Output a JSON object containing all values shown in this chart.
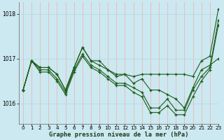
{
  "title": "Graphe pression niveau de la mer (hPa)",
  "bg_color": "#cce8f0",
  "grid_color_h": "#b8d8e8",
  "grid_color_v": "#e8b8b8",
  "line_color": "#1a5c1a",
  "xlim": [
    -0.5,
    23
  ],
  "ylim": [
    1015.55,
    1018.25
  ],
  "yticks": [
    1016,
    1017,
    1018
  ],
  "xticks": [
    0,
    1,
    2,
    3,
    4,
    5,
    6,
    7,
    8,
    9,
    10,
    11,
    12,
    13,
    14,
    15,
    16,
    17,
    18,
    19,
    20,
    21,
    22,
    23
  ],
  "series": [
    [
      1016.3,
      1016.95,
      1016.8,
      1016.8,
      1016.65,
      1016.3,
      1016.8,
      1017.25,
      1016.95,
      1016.95,
      1016.75,
      1016.65,
      1016.65,
      1016.6,
      1016.65,
      1016.65,
      1016.65,
      1016.65,
      1016.65,
      1016.65,
      1016.6,
      1016.95,
      1017.05,
      1018.1
    ],
    [
      1016.3,
      1016.95,
      1016.8,
      1016.8,
      1016.65,
      1016.3,
      1016.8,
      1017.25,
      1016.95,
      1016.85,
      1016.75,
      1016.6,
      1016.65,
      1016.45,
      1016.55,
      1016.3,
      1016.3,
      1016.2,
      1016.1,
      1015.9,
      1016.35,
      1016.75,
      1016.85,
      1017.0
    ],
    [
      1016.3,
      1016.95,
      1016.75,
      1016.75,
      1016.55,
      1016.25,
      1016.75,
      1017.1,
      1016.85,
      1016.75,
      1016.6,
      1016.45,
      1016.45,
      1016.35,
      1016.25,
      1015.9,
      1015.9,
      1016.1,
      1015.85,
      1015.85,
      1016.3,
      1016.6,
      1016.8,
      1017.85
    ],
    [
      1016.3,
      1016.95,
      1016.7,
      1016.7,
      1016.5,
      1016.2,
      1016.7,
      1017.05,
      1016.8,
      1016.7,
      1016.55,
      1016.4,
      1016.4,
      1016.25,
      1016.15,
      1015.8,
      1015.8,
      1015.95,
      1015.75,
      1015.75,
      1016.15,
      1016.5,
      1016.75,
      1017.75
    ]
  ]
}
